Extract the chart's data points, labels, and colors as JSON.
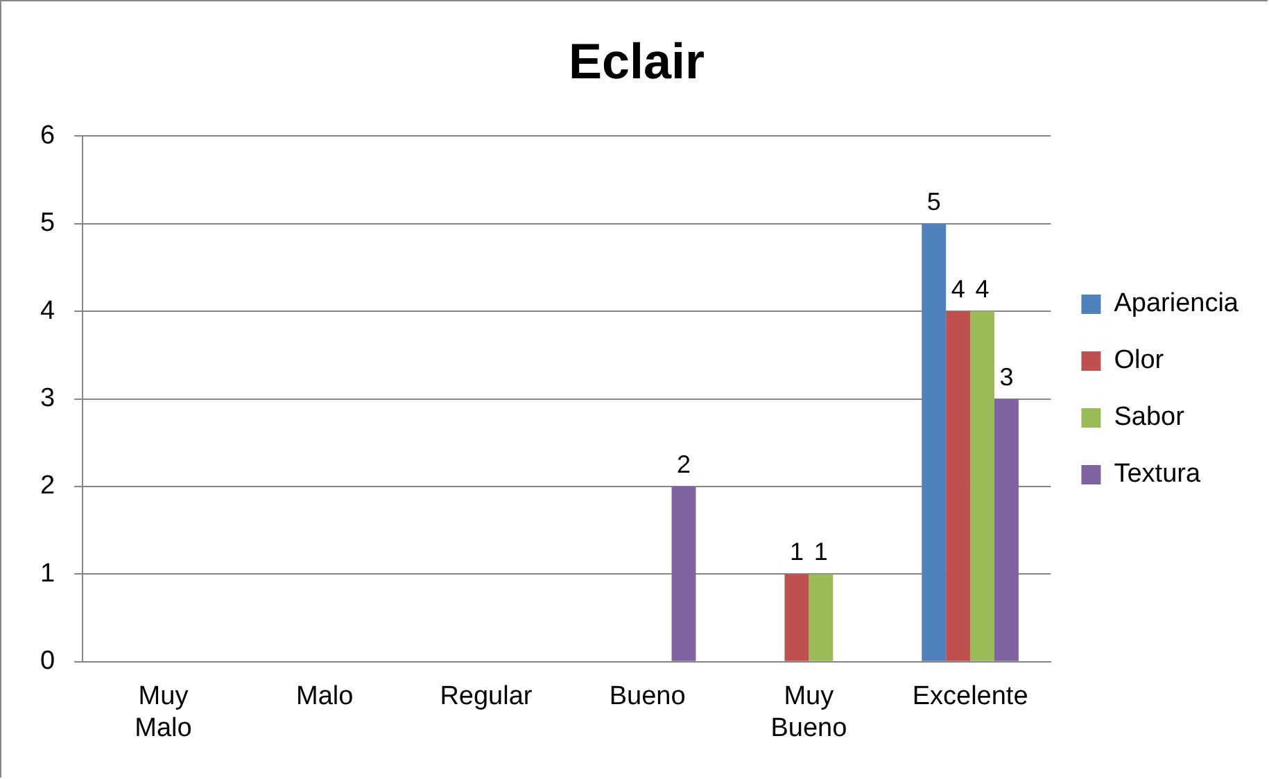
{
  "chart_data": {
    "type": "bar",
    "title": "Eclair",
    "categories": [
      "Muy Malo",
      "Malo",
      "Regular",
      "Bueno",
      "Muy Bueno",
      "Excelente"
    ],
    "series": [
      {
        "name": "Apariencia",
        "color": "#4f81bd",
        "values": [
          0,
          0,
          0,
          0,
          0,
          5
        ],
        "value_labels": [
          null,
          null,
          null,
          null,
          null,
          "5"
        ]
      },
      {
        "name": "Olor",
        "color": "#c0504d",
        "values": [
          0,
          0,
          0,
          0,
          1,
          4
        ],
        "value_labels": [
          null,
          null,
          null,
          null,
          "1",
          "4"
        ]
      },
      {
        "name": "Sabor",
        "color": "#9bbb59",
        "values": [
          0,
          0,
          0,
          0,
          1,
          4
        ],
        "value_labels": [
          null,
          null,
          null,
          null,
          "1",
          "4"
        ]
      },
      {
        "name": "Textura",
        "color": "#8064a2",
        "values": [
          0,
          0,
          0,
          2,
          0,
          3
        ],
        "value_labels": [
          null,
          null,
          null,
          "2",
          null,
          "3"
        ]
      }
    ],
    "ylim": [
      0,
      6
    ],
    "yticks": [
      0,
      1,
      2,
      3,
      4,
      5,
      6
    ],
    "grid": "y",
    "legend": "right"
  }
}
